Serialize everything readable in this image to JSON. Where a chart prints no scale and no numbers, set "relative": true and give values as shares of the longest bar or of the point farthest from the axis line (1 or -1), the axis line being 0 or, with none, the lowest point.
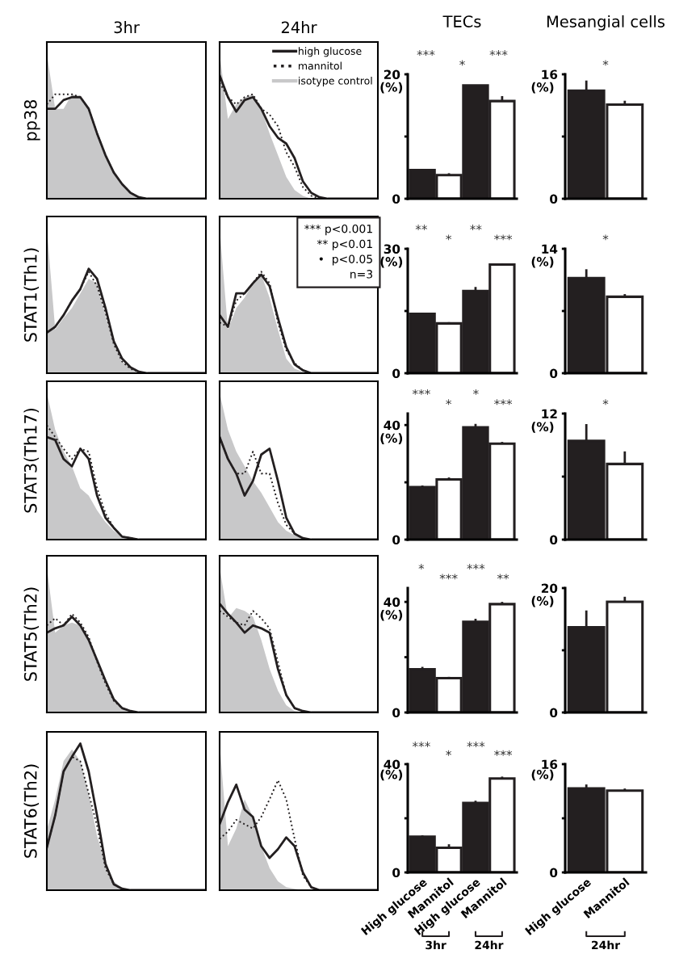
{
  "chart_data": [
    {
      "type": "line",
      "relative": true,
      "title": "3hr",
      "ylabel": "pp38",
      "tick_labels": false,
      "categories": [
        null,
        null,
        null,
        null,
        null,
        null,
        null,
        null,
        null,
        null,
        null,
        null,
        null,
        null,
        null,
        null,
        null,
        null,
        null,
        null
      ],
      "series": [
        {
          "color": "#231f20",
          "line_style": "solid",
          "values": [
            0.62,
            0.62,
            0.68,
            0.7,
            0.7,
            0.62,
            0.45,
            0.3,
            0.18,
            0.1,
            0.04,
            0.01,
            0,
            0,
            0,
            0,
            0,
            0,
            0,
            0
          ]
        },
        {
          "color": "#231f20",
          "line_style": "dotted",
          "values": [
            0.65,
            0.72,
            0.72,
            0.72,
            0.7,
            0.62,
            0.45,
            0.3,
            0.18,
            0.1,
            0.04,
            0.01,
            0,
            0,
            0,
            0,
            0,
            0,
            0,
            0
          ]
        },
        {
          "type": "area",
          "color": "#c8c8c9",
          "values": [
            1.0,
            0.62,
            0.62,
            0.72,
            0.7,
            0.62,
            0.45,
            0.3,
            0.18,
            0.1,
            0.04,
            0.01,
            0,
            0,
            0,
            0,
            0,
            0,
            0,
            0
          ]
        }
      ]
    },
    {
      "type": "line",
      "relative": true,
      "title": "24hr",
      "tick_labels": false,
      "legend": "top right",
      "categories": [
        null,
        null,
        null,
        null,
        null,
        null,
        null,
        null,
        null,
        null,
        null,
        null,
        null,
        null,
        null,
        null,
        null,
        null,
        null,
        null
      ],
      "series": [
        {
          "name": "high glucose",
          "color": "#231f20",
          "line_style": "solid",
          "values": [
            0.85,
            0.7,
            0.6,
            0.68,
            0.7,
            0.62,
            0.5,
            0.42,
            0.38,
            0.28,
            0.12,
            0.04,
            0.01,
            0,
            0,
            0,
            0,
            0,
            0,
            0
          ]
        },
        {
          "name": "mannitol",
          "color": "#231f20",
          "line_style": "dotted",
          "values": [
            0.8,
            0.7,
            0.65,
            0.7,
            0.72,
            0.62,
            0.58,
            0.5,
            0.32,
            0.22,
            0.08,
            0.02,
            0,
            0,
            0,
            0,
            0,
            0,
            0,
            0
          ]
        },
        {
          "name": "isotype control",
          "type": "area",
          "color": "#c8c8c9",
          "values": [
            1.0,
            0.55,
            0.65,
            0.7,
            0.72,
            0.62,
            0.45,
            0.3,
            0.15,
            0.06,
            0.02,
            0,
            0,
            0,
            0,
            0,
            0,
            0,
            0,
            0
          ]
        }
      ]
    },
    {
      "type": "bar",
      "title": "TECs",
      "ylabel": "(%)",
      "tick_labels": "y",
      "categories": [
        null,
        null,
        null,
        null
      ],
      "values": [
        4.6,
        3.8,
        18.2,
        15.7
      ],
      "errors": [
        0.2,
        0.3,
        null,
        0.8
      ],
      "colors": [
        "#231f20",
        "#ffffff",
        "#231f20",
        "#ffffff"
      ],
      "ylim": [
        0,
        20
      ],
      "yticks": [
        0,
        {
          "value": 10,
          "label": null
        },
        20
      ],
      "annotations": [
        "***",
        "*",
        "***"
      ]
    },
    {
      "type": "bar",
      "title": "Mesangial cells",
      "ylabel": "(%)",
      "tick_labels": "y",
      "categories": [
        null,
        null
      ],
      "values": [
        13.9,
        12.1
      ],
      "errors": [
        1.3,
        0.5
      ],
      "colors": [
        "#231f20",
        "#ffffff"
      ],
      "ylim": [
        0,
        16
      ],
      "yticks": [
        0,
        {
          "value": 8,
          "label": null
        },
        16
      ],
      "annotations": [
        "*"
      ]
    },
    {
      "type": "line",
      "relative": true,
      "ylabel": "STAT1(Th1)",
      "tick_labels": false,
      "categories": [
        null,
        null,
        null,
        null,
        null,
        null,
        null,
        null,
        null,
        null,
        null,
        null,
        null,
        null,
        null,
        null,
        null,
        null,
        null,
        null
      ],
      "series": [
        {
          "color": "#231f20",
          "line_style": "solid",
          "values": [
            0.28,
            0.32,
            0.4,
            0.5,
            0.58,
            0.72,
            0.65,
            0.45,
            0.22,
            0.1,
            0.04,
            0.01,
            0,
            0,
            0,
            0,
            0,
            0,
            0,
            0
          ]
        },
        {
          "color": "#231f20",
          "line_style": "dotted",
          "values": [
            0.28,
            0.32,
            0.4,
            0.5,
            0.58,
            0.7,
            0.6,
            0.42,
            0.2,
            0.08,
            0.03,
            0.01,
            0,
            0,
            0,
            0,
            0,
            0,
            0,
            0
          ]
        },
        {
          "type": "area",
          "color": "#c8c8c9",
          "values": [
            1.0,
            0.3,
            0.38,
            0.45,
            0.55,
            0.65,
            0.62,
            0.4,
            0.2,
            0.08,
            0.03,
            0.01,
            0,
            0,
            0,
            0,
            0,
            0,
            0,
            0
          ]
        }
      ]
    },
    {
      "type": "line",
      "relative": true,
      "tick_labels": false,
      "annotations": [
        "*** p<0.001",
        "** p<0.01",
        "•  p<0.05",
        "n=3"
      ],
      "categories": [
        null,
        null,
        null,
        null,
        null,
        null,
        null,
        null,
        null,
        null,
        null,
        null,
        null,
        null,
        null,
        null,
        null,
        null,
        null,
        null
      ],
      "series": [
        {
          "color": "#231f20",
          "line_style": "solid",
          "values": [
            0.4,
            0.32,
            0.55,
            0.55,
            0.62,
            0.68,
            0.6,
            0.38,
            0.18,
            0.06,
            0.02,
            0,
            0,
            0,
            0,
            0,
            0,
            0,
            0,
            0
          ]
        },
        {
          "color": "#231f20",
          "line_style": "dotted",
          "values": [
            0.35,
            0.32,
            0.5,
            0.55,
            0.62,
            0.7,
            0.62,
            0.35,
            0.16,
            0.07,
            0.02,
            0,
            0,
            0,
            0,
            0,
            0,
            0,
            0,
            0
          ]
        },
        {
          "type": "area",
          "color": "#c8c8c9",
          "values": [
            1.0,
            0.3,
            0.45,
            0.52,
            0.62,
            0.68,
            0.52,
            0.3,
            0.1,
            0.03,
            0.01,
            0,
            0,
            0,
            0,
            0,
            0,
            0,
            0,
            0
          ]
        }
      ]
    },
    {
      "type": "bar",
      "ylabel": "(%)",
      "tick_labels": "y",
      "categories": [
        null,
        null,
        null,
        null
      ],
      "values": [
        14.3,
        12.0,
        19.8,
        26.2
      ],
      "errors": [
        0.3,
        0.3,
        1.0,
        0.3
      ],
      "colors": [
        "#231f20",
        "#ffffff",
        "#231f20",
        "#ffffff"
      ],
      "ylim": [
        0,
        30
      ],
      "yticks": [
        0,
        {
          "value": 15,
          "label": null
        },
        30
      ],
      "annotations": [
        "**",
        "*",
        "**",
        "***"
      ]
    },
    {
      "type": "bar",
      "ylabel": "(%)",
      "tick_labels": "y",
      "categories": [
        null,
        null
      ],
      "values": [
        10.7,
        8.6
      ],
      "errors": [
        1.0,
        0.3
      ],
      "colors": [
        "#231f20",
        "#ffffff"
      ],
      "ylim": [
        0,
        14
      ],
      "yticks": [
        0,
        {
          "value": 7,
          "label": null
        },
        14
      ],
      "annotations": [
        "*"
      ]
    },
    {
      "type": "line",
      "relative": true,
      "ylabel": "STAT3(Th17)",
      "tick_labels": false,
      "categories": [
        null,
        null,
        null,
        null,
        null,
        null,
        null,
        null,
        null,
        null,
        null,
        null,
        null,
        null,
        null,
        null,
        null,
        null,
        null,
        null
      ],
      "series": [
        {
          "color": "#231f20",
          "line_style": "solid",
          "values": [
            0.7,
            0.68,
            0.55,
            0.5,
            0.62,
            0.55,
            0.3,
            0.15,
            0.08,
            0.02,
            0.01,
            0,
            0,
            0,
            0,
            0,
            0,
            0,
            0,
            0
          ]
        },
        {
          "color": "#231f20",
          "line_style": "dotted",
          "values": [
            0.78,
            0.7,
            0.62,
            0.55,
            0.62,
            0.6,
            0.35,
            0.18,
            0.08,
            0.02,
            0.01,
            0,
            0,
            0,
            0,
            0,
            0,
            0,
            0,
            0
          ]
        },
        {
          "type": "area",
          "color": "#c8c8c9",
          "values": [
            1.0,
            0.75,
            0.6,
            0.5,
            0.35,
            0.3,
            0.2,
            0.12,
            0.06,
            0.02,
            0.01,
            0,
            0,
            0,
            0,
            0,
            0,
            0,
            0,
            0
          ]
        }
      ]
    },
    {
      "type": "line",
      "relative": true,
      "tick_labels": false,
      "categories": [
        null,
        null,
        null,
        null,
        null,
        null,
        null,
        null,
        null,
        null,
        null,
        null,
        null,
        null,
        null,
        null,
        null,
        null,
        null,
        null
      ],
      "series": [
        {
          "color": "#231f20",
          "line_style": "solid",
          "values": [
            0.7,
            0.55,
            0.45,
            0.3,
            0.4,
            0.58,
            0.62,
            0.4,
            0.15,
            0.04,
            0.01,
            0,
            0,
            0,
            0,
            0,
            0,
            0,
            0,
            0
          ]
        },
        {
          "color": "#231f20",
          "line_style": "dotted",
          "values": [
            0.7,
            0.55,
            0.45,
            0.45,
            0.6,
            0.45,
            0.45,
            0.25,
            0.1,
            0.04,
            0.01,
            0,
            0,
            0,
            0,
            0,
            0,
            0,
            0,
            0
          ]
        },
        {
          "type": "area",
          "color": "#c8c8c9",
          "values": [
            1.0,
            0.75,
            0.6,
            0.5,
            0.4,
            0.32,
            0.22,
            0.12,
            0.06,
            0.03,
            0.01,
            0,
            0,
            0,
            0,
            0,
            0,
            0,
            0,
            0
          ]
        }
      ]
    },
    {
      "type": "bar",
      "ylabel": "(%)",
      "tick_labels": "y",
      "categories": [
        null,
        null,
        null,
        null
      ],
      "values": [
        18.3,
        21.0,
        39.2,
        33.5
      ],
      "errors": [
        0.6,
        0.7,
        1.2,
        0.6
      ],
      "colors": [
        "#231f20",
        "#ffffff",
        "#231f20",
        "#ffffff"
      ],
      "ylim": [
        0,
        44
      ],
      "yticks": [
        0,
        {
          "value": 20,
          "label": null
        },
        40
      ],
      "annotations": [
        "***",
        "*",
        "*",
        "***"
      ]
    },
    {
      "type": "bar",
      "ylabel": "(%)",
      "tick_labels": "y",
      "categories": [
        null,
        null
      ],
      "values": [
        9.4,
        7.2
      ],
      "errors": [
        1.6,
        1.2
      ],
      "colors": [
        "#231f20",
        "#ffffff"
      ],
      "ylim": [
        0,
        12
      ],
      "yticks": [
        0,
        {
          "value": 6,
          "label": null
        },
        12
      ],
      "annotations": [
        "*"
      ]
    },
    {
      "type": "line",
      "relative": true,
      "ylabel": "STAT5(Th2)",
      "tick_labels": false,
      "categories": [
        null,
        null,
        null,
        null,
        null,
        null,
        null,
        null,
        null,
        null,
        null,
        null,
        null,
        null,
        null,
        null,
        null,
        null,
        null,
        null
      ],
      "series": [
        {
          "color": "#231f20",
          "line_style": "solid",
          "values": [
            0.55,
            0.58,
            0.6,
            0.66,
            0.6,
            0.5,
            0.36,
            0.22,
            0.09,
            0.03,
            0.01,
            0,
            0,
            0,
            0,
            0,
            0,
            0,
            0,
            0
          ]
        },
        {
          "color": "#231f20",
          "line_style": "dotted",
          "values": [
            0.6,
            0.65,
            0.6,
            0.68,
            0.62,
            0.52,
            0.35,
            0.2,
            0.08,
            0.03,
            0.01,
            0,
            0,
            0,
            0,
            0,
            0,
            0,
            0,
            0
          ]
        },
        {
          "type": "area",
          "color": "#c8c8c9",
          "values": [
            1.0,
            0.55,
            0.6,
            0.62,
            0.6,
            0.5,
            0.35,
            0.2,
            0.08,
            0.03,
            0.01,
            0,
            0,
            0,
            0,
            0,
            0,
            0,
            0,
            0
          ]
        }
      ]
    },
    {
      "type": "line",
      "relative": true,
      "tick_labels": false,
      "categories": [
        null,
        null,
        null,
        null,
        null,
        null,
        null,
        null,
        null,
        null,
        null,
        null,
        null,
        null,
        null,
        null,
        null,
        null,
        null,
        null
      ],
      "series": [
        {
          "color": "#231f20",
          "line_style": "solid",
          "values": [
            0.75,
            0.68,
            0.62,
            0.55,
            0.6,
            0.58,
            0.55,
            0.3,
            0.12,
            0.03,
            0.01,
            0,
            0,
            0,
            0,
            0,
            0,
            0,
            0,
            0
          ]
        },
        {
          "color": "#231f20",
          "line_style": "dotted",
          "values": [
            0.7,
            0.66,
            0.62,
            0.6,
            0.7,
            0.65,
            0.58,
            0.35,
            0.12,
            0.03,
            0.01,
            0,
            0,
            0,
            0,
            0,
            0,
            0,
            0,
            0
          ]
        },
        {
          "type": "area",
          "color": "#c8c8c9",
          "values": [
            1.0,
            0.65,
            0.72,
            0.7,
            0.66,
            0.5,
            0.3,
            0.15,
            0.05,
            0.01,
            0,
            0,
            0,
            0,
            0,
            0,
            0,
            0,
            0,
            0
          ]
        }
      ]
    },
    {
      "type": "bar",
      "ylabel": "(%)",
      "tick_labels": "y",
      "categories": [
        null,
        null,
        null,
        null
      ],
      "values": [
        15.6,
        12.4,
        32.8,
        39.2
      ],
      "errors": [
        0.9,
        0.5,
        1.1,
        0.8
      ],
      "colors": [
        "#231f20",
        "#ffffff",
        "#231f20",
        "#ffffff"
      ],
      "ylim": [
        0,
        45
      ],
      "yticks": [
        0,
        {
          "value": 20,
          "label": null
        },
        40
      ],
      "annotations": [
        "*",
        "***",
        "***",
        "**"
      ]
    },
    {
      "type": "bar",
      "ylabel": "(%)",
      "tick_labels": "y",
      "categories": [
        null,
        null
      ],
      "values": [
        13.7,
        17.8
      ],
      "errors": [
        2.7,
        0.8
      ],
      "colors": [
        "#231f20",
        "#ffffff"
      ],
      "ylim": [
        0,
        20
      ],
      "yticks": [
        0,
        {
          "value": 10,
          "label": null
        },
        20
      ]
    },
    {
      "type": "line",
      "relative": true,
      "ylabel": "STAT6(Th2)",
      "tick_labels": false,
      "categories": [
        null,
        null,
        null,
        null,
        null,
        null,
        null,
        null,
        null,
        null,
        null,
        null,
        null,
        null,
        null,
        null,
        null,
        null,
        null,
        null
      ],
      "series": [
        {
          "color": "#231f20",
          "line_style": "solid",
          "values": [
            0.29,
            0.51,
            0.81,
            0.91,
            1.0,
            0.81,
            0.51,
            0.18,
            0.04,
            0.01,
            0,
            0,
            0,
            0,
            0,
            0,
            0,
            0,
            0,
            0
          ]
        },
        {
          "color": "#231f20",
          "line_style": "dotted",
          "values": [
            0.29,
            0.51,
            0.81,
            0.91,
            0.88,
            0.66,
            0.44,
            0.15,
            0.04,
            0.01,
            0,
            0,
            0,
            0,
            0,
            0,
            0,
            0,
            0,
            0
          ]
        },
        {
          "type": "area",
          "color": "#c8c8c9",
          "values": [
            0.41,
            0.62,
            0.88,
            0.96,
            0.88,
            0.66,
            0.37,
            0.18,
            0.06,
            0.01,
            0,
            0,
            0,
            0,
            0,
            0,
            0,
            0,
            0,
            0
          ]
        }
      ]
    },
    {
      "type": "line",
      "relative": true,
      "tick_labels": false,
      "categories": [
        null,
        null,
        null,
        null,
        null,
        null,
        null,
        null,
        null,
        null,
        null,
        null,
        null,
        null,
        null,
        null,
        null,
        null,
        null,
        null
      ],
      "series": [
        {
          "color": "#231f20",
          "line_style": "solid",
          "values": [
            0.45,
            0.6,
            0.72,
            0.55,
            0.5,
            0.3,
            0.22,
            0.28,
            0.36,
            0.3,
            0.12,
            0.02,
            0,
            0,
            0,
            0,
            0,
            0,
            0,
            0
          ]
        },
        {
          "color": "#231f20",
          "line_style": "dotted",
          "values": [
            0.35,
            0.4,
            0.48,
            0.45,
            0.42,
            0.5,
            0.62,
            0.75,
            0.62,
            0.35,
            0.1,
            0.02,
            0,
            0,
            0,
            0,
            0,
            0,
            0,
            0
          ]
        },
        {
          "type": "area",
          "color": "#c8c8c9",
          "values": [
            1.0,
            0.3,
            0.42,
            0.62,
            0.5,
            0.3,
            0.15,
            0.06,
            0.02,
            0.01,
            0,
            0,
            0,
            0,
            0,
            0,
            0,
            0,
            0,
            0
          ]
        }
      ]
    },
    {
      "type": "bar",
      "ylabel": "(%)",
      "categories": [
        "High glucose",
        "Mannitol",
        "High glucose",
        "Mannitol"
      ],
      "values": [
        13.2,
        9.1,
        25.7,
        34.7
      ],
      "errors": [
        0.5,
        1.3,
        0.8,
        0.7
      ],
      "colors": [
        "#231f20",
        "#ffffff",
        "#231f20",
        "#ffffff"
      ],
      "ylim": [
        0,
        40
      ],
      "yticks": [
        0,
        {
          "value": 20,
          "label": null
        },
        40
      ],
      "annotations": [
        "***",
        "*",
        "***",
        "***",
        {
          "text": "3hr"
        },
        {
          "text": "24hr"
        }
      ]
    },
    {
      "type": "bar",
      "ylabel": "(%)",
      "categories": [
        "High glucose",
        "Mannitol"
      ],
      "values": [
        12.4,
        12.1
      ],
      "errors": [
        0.6,
        0.3
      ],
      "colors": [
        "#231f20",
        "#ffffff"
      ],
      "ylim": [
        0,
        16
      ],
      "yticks": [
        0,
        {
          "value": 8,
          "label": null
        },
        16
      ],
      "annotations": [
        {
          "text": "24hr"
        }
      ]
    }
  ]
}
